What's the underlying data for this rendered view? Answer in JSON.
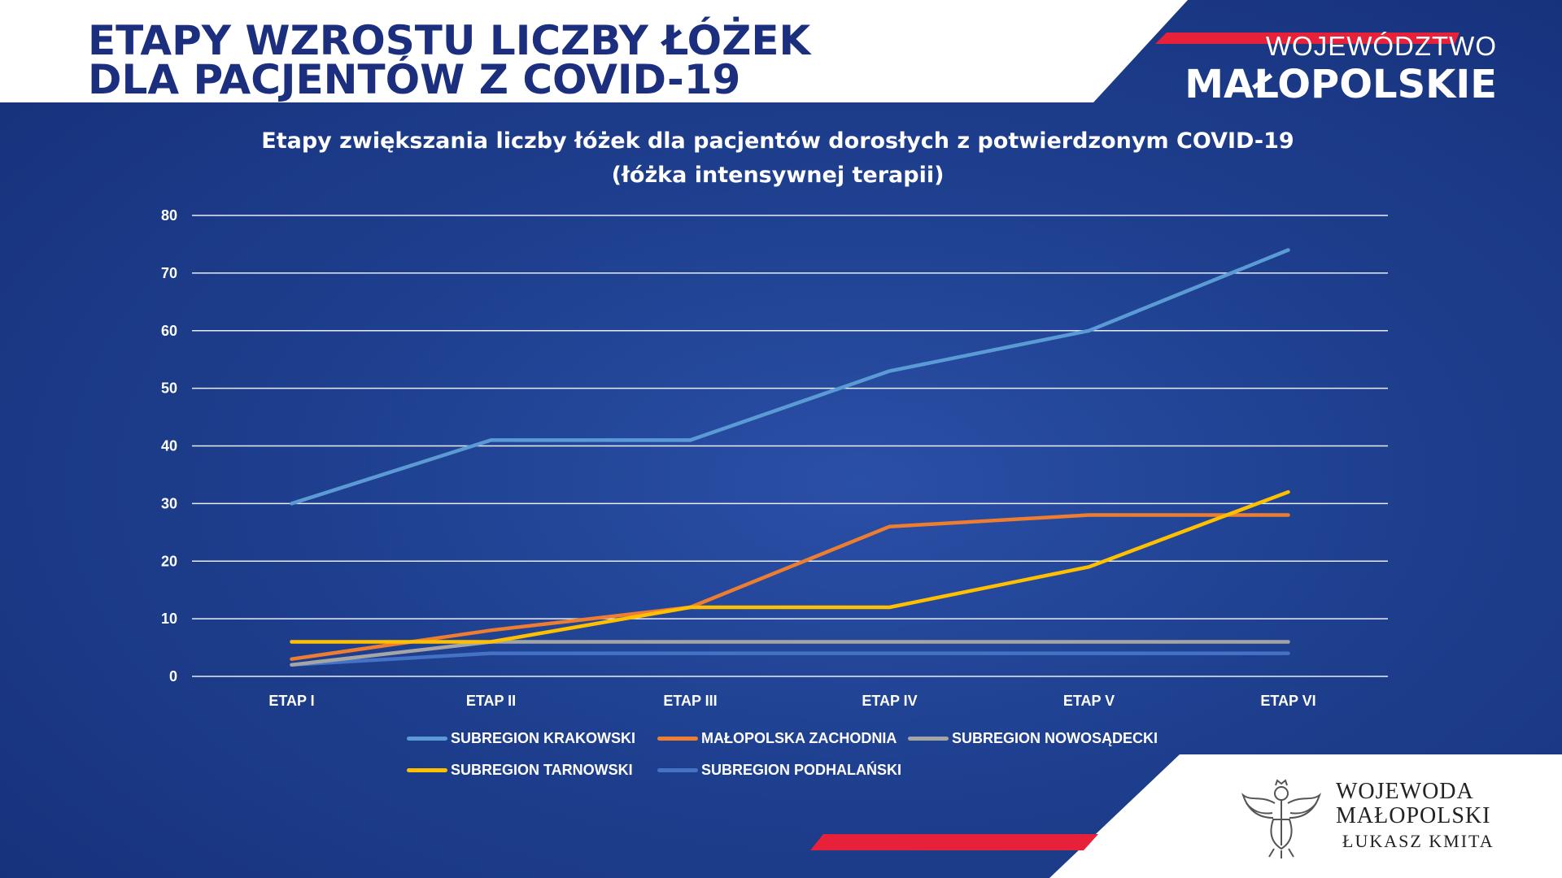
{
  "header": {
    "title_line1": "ETAPY WZROSTU LICZBY ŁÓŻEK",
    "title_line2": "DLA PACJENTÓW Z COVID-19",
    "brand_line1": "WOJEWÓDZTWO",
    "brand_line2": "MAŁOPOLSKIE"
  },
  "footer": {
    "line1": "WOJEWODA",
    "line2": "MAŁOPOLSKI",
    "line3": "ŁUKASZ KMITA"
  },
  "colors": {
    "background": "#1e3f8e",
    "header_text": "#1b2f7e",
    "accent_red": "#e8213b",
    "grid": "#ffffff"
  },
  "chart_data": {
    "type": "line",
    "title": "Etapy zwiększania liczby łóżek dla pacjentów dorosłych z potwierdzonym COVID-19",
    "subtitle": "(łóżka intensywnej terapii)",
    "categories": [
      "ETAP I",
      "ETAP II",
      "ETAP III",
      "ETAP IV",
      "ETAP V",
      "ETAP VI"
    ],
    "ylim": [
      0,
      80
    ],
    "yticks": [
      0,
      10,
      20,
      30,
      40,
      50,
      60,
      70,
      80
    ],
    "grid": true,
    "legend_position": "bottom",
    "series": [
      {
        "name": "SUBREGION KRAKOWSKI",
        "color": "#5b9bd5",
        "values": [
          30,
          41,
          41,
          53,
          60,
          74
        ]
      },
      {
        "name": "MAŁOPOLSKA ZACHODNIA",
        "color": "#ed7d31",
        "values": [
          3,
          8,
          12,
          26,
          28,
          28
        ]
      },
      {
        "name": "SUBREGION NOWOSĄDECKI",
        "color": "#a5a5a5",
        "values": [
          2,
          6,
          6,
          6,
          6,
          6
        ]
      },
      {
        "name": "SUBREGION TARNOWSKI",
        "color": "#ffc000",
        "values": [
          6,
          6,
          12,
          12,
          19,
          32
        ]
      },
      {
        "name": "SUBREGION PODHALAŃSKI",
        "color": "#4472c4",
        "values": [
          2,
          4,
          4,
          4,
          4,
          4
        ]
      }
    ]
  }
}
